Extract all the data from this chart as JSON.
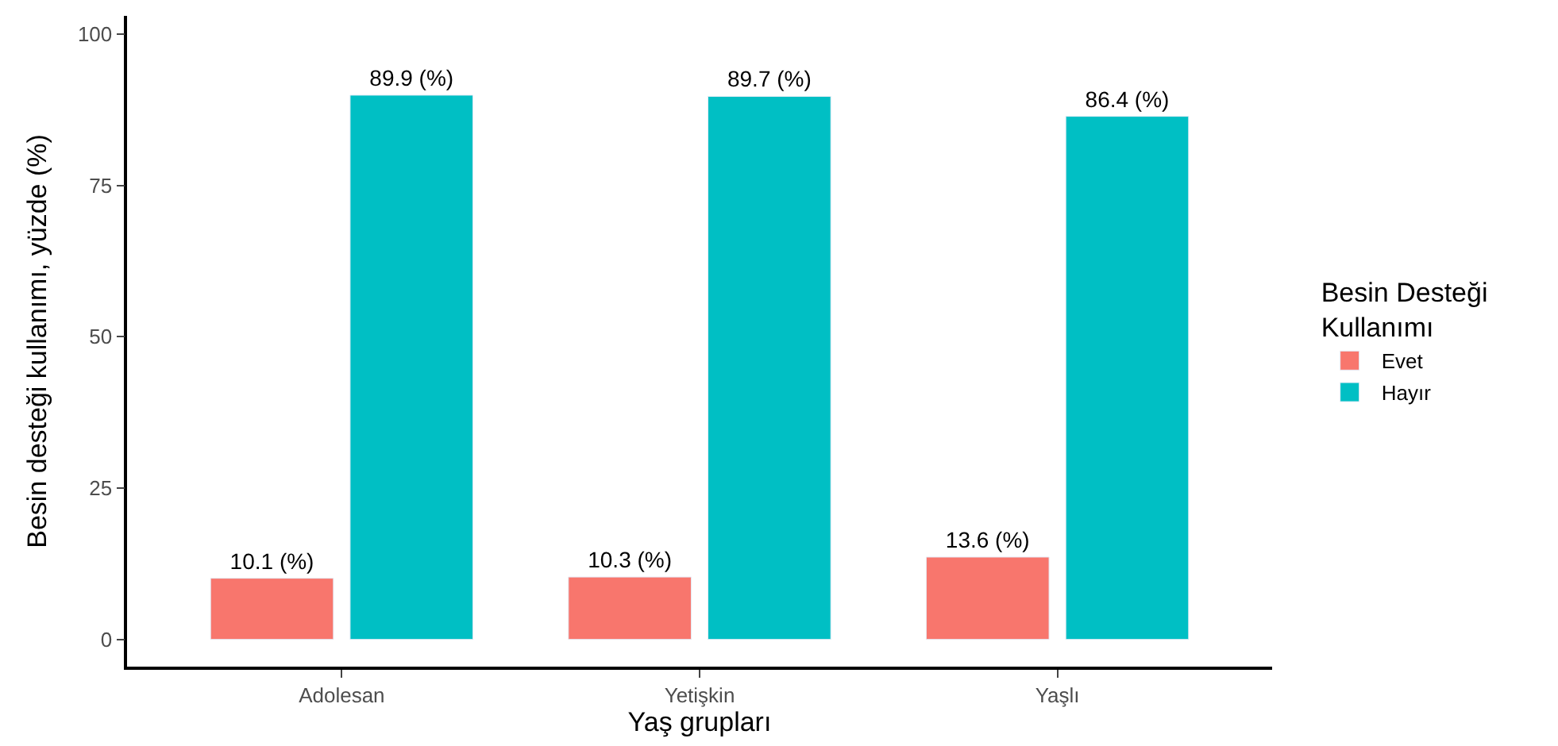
{
  "chart_data": {
    "type": "bar",
    "xlabel": "Yaş grupları",
    "ylabel": "Besin desteği kullanımı, yüzde (%)",
    "legend_title": "Besin Desteği Kullanımı",
    "categories": [
      "Adolesan",
      "Yetişkin",
      "Yaşlı"
    ],
    "series": [
      {
        "name": "Evet",
        "color": "#f8766d",
        "values": [
          10.1,
          10.3,
          13.6
        ],
        "value_labels": [
          "10.1 (%)",
          "10.3 (%)",
          "13.6 (%)"
        ]
      },
      {
        "name": "Hayır",
        "color": "#00bfc4",
        "values": [
          89.9,
          89.7,
          86.4
        ],
        "value_labels": [
          "89.9 (%)",
          "89.7 (%)",
          "86.4 (%)"
        ]
      }
    ],
    "ylim": [
      -4.5,
      103
    ],
    "yticks": [
      0,
      25,
      50,
      75,
      100
    ],
    "legend": "right"
  }
}
